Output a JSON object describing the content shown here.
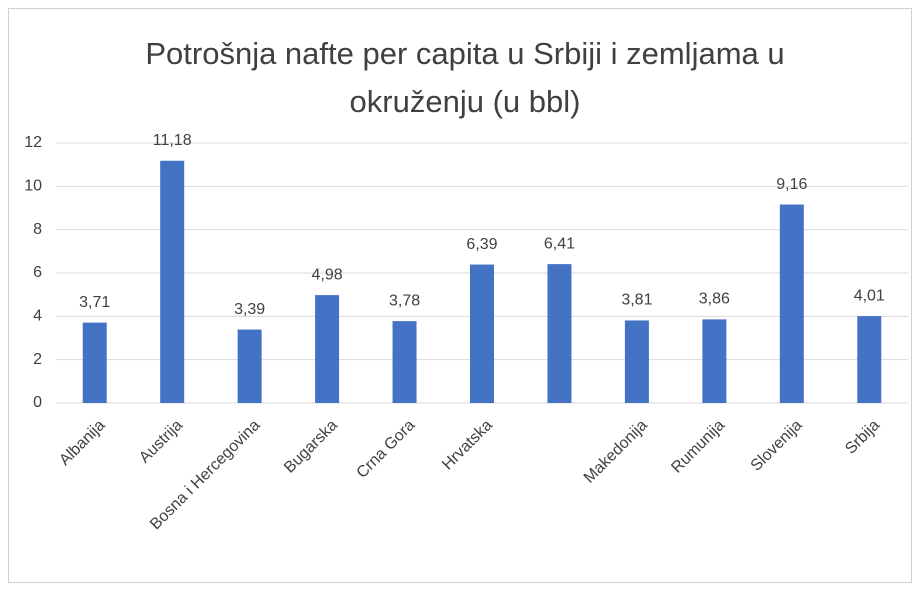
{
  "chart_data": {
    "type": "bar",
    "title": "Potrošnja nafte per capita u Srbiji i zemljama u okruženju (u bbl)",
    "categories": [
      "Albanija",
      "Austrija",
      "Bosna i Hercegovina",
      "Bugarska",
      "Crna Gora",
      "Hrvatska",
      null,
      "Makedonija",
      "Rumunija",
      "Slovenija",
      "Srbija"
    ],
    "values": [
      3.71,
      11.18,
      3.39,
      4.98,
      3.78,
      6.39,
      6.41,
      3.81,
      3.86,
      9.16,
      4.01
    ],
    "value_labels": [
      "3,71",
      "11,18",
      "3,39",
      "4,98",
      "3,78",
      "6,39",
      "6,41",
      "3,81",
      "3,86",
      "9,16",
      "4,01"
    ],
    "color": "#4472c4",
    "ylim": [
      0,
      12
    ],
    "yticks": [
      0,
      2,
      4,
      6,
      8,
      10,
      12
    ],
    "grid": true
  }
}
